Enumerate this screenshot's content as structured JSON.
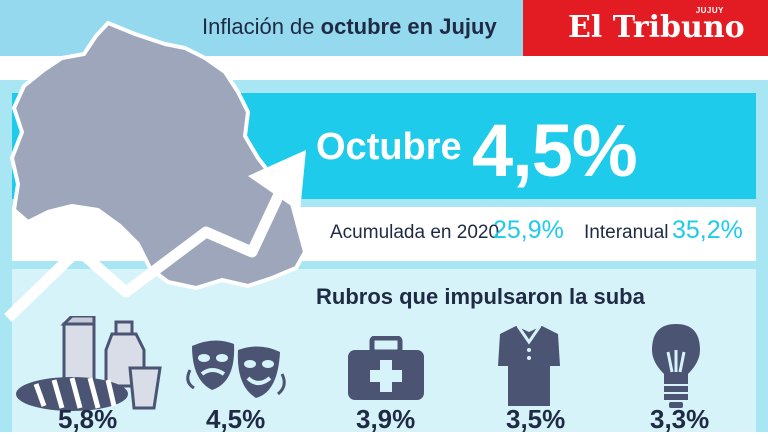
{
  "header": {
    "headline_prefix": "Inflación de ",
    "headline_bold": "octubre en Jujuy",
    "brand_name": "El Tribuno",
    "brand_sub": "JUJUY"
  },
  "main": {
    "month_label": "Octubre",
    "month_value": "4,5%",
    "accumulated_label": "Acumulada en 2020",
    "accumulated_value": "25,9%",
    "interanual_label": "Interanual",
    "interanual_value": "35,2%"
  },
  "rubros": {
    "title": "Rubros que impulsaron la suba",
    "items": [
      {
        "icon": "food-icon",
        "value": "5,8%"
      },
      {
        "icon": "theater-masks-icon",
        "value": "4,5%"
      },
      {
        "icon": "medical-kit-icon",
        "value": "3,9%"
      },
      {
        "icon": "shirt-icon",
        "value": "3,5%"
      },
      {
        "icon": "light-bulb-icon",
        "value": "3,3%"
      }
    ]
  },
  "colors": {
    "accent": "#1ecbea",
    "light_band": "#a9e6f4",
    "header_band": "#94d9ee",
    "brand_red": "#e31b23",
    "dark_text": "#1f2a44",
    "map_fill": "#9ea6bc",
    "icon_fill": "#4b5573"
  }
}
